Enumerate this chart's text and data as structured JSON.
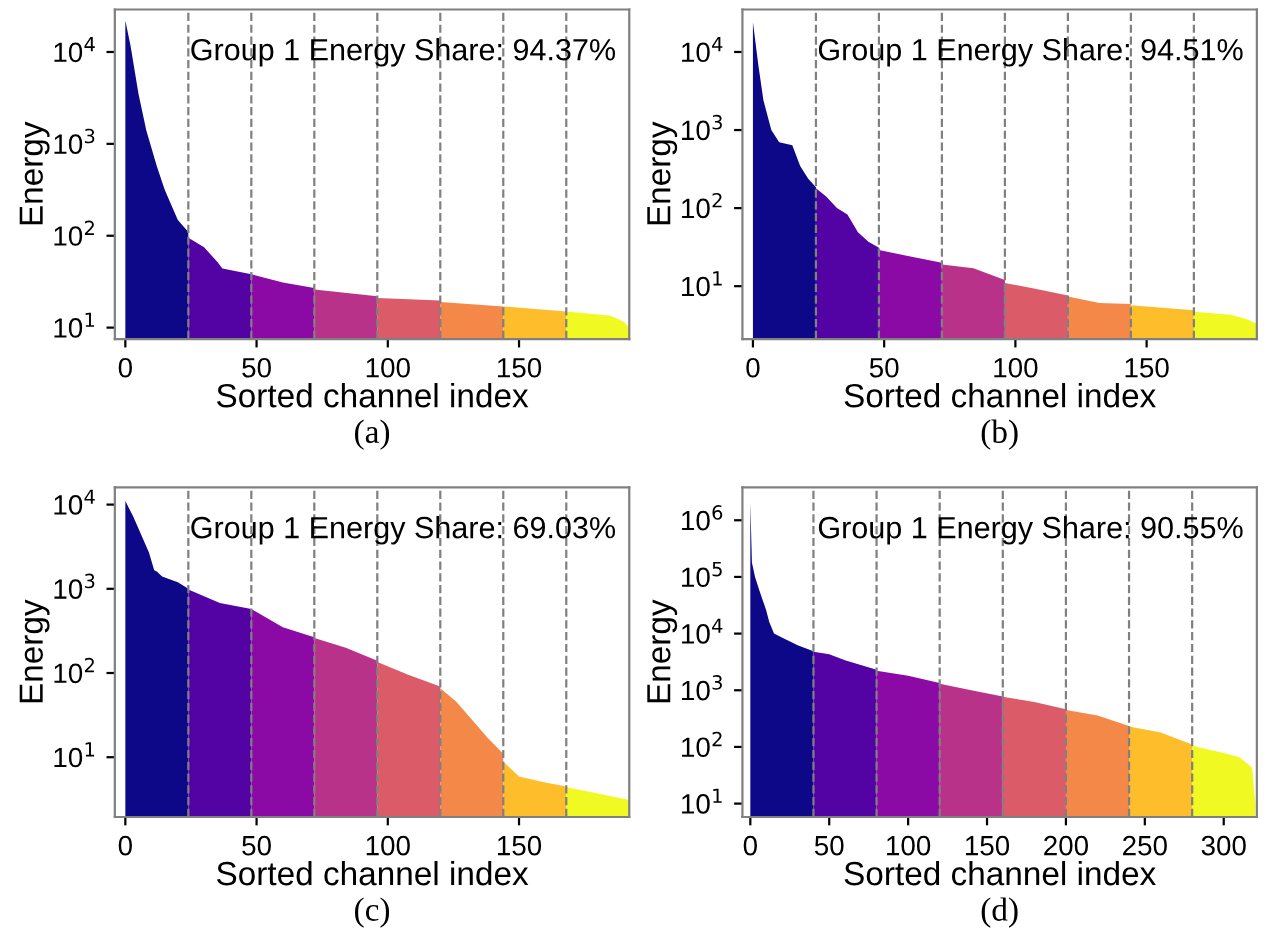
{
  "chart_data": [
    {
      "type": "area",
      "xlabel": "Sorted channel index",
      "ylabel": "Energy",
      "annotations": [
        "Group 1 Energy Share: 94.37%",
        "(a)"
      ],
      "log": "y",
      "xlim": [
        -4,
        192
      ],
      "ylim": [
        7.5,
        29000
      ],
      "xticks": [
        0,
        50,
        100,
        150
      ],
      "yticks": [
        {
          "value": 10,
          "label": "10$^{1}$"
        },
        {
          "value": 100,
          "label": "10$^{2}$"
        },
        {
          "value": 1000,
          "label": "10$^{3}$"
        },
        {
          "value": 10000,
          "label": "10$^{4}$"
        }
      ],
      "grid": false,
      "legend": false,
      "ref_lines": [
        {
          "axis": "x",
          "value": 24,
          "color": "#808080",
          "line_style": "dashed"
        },
        {
          "axis": "x",
          "value": 48,
          "color": "#808080",
          "line_style": "dashed"
        },
        {
          "axis": "x",
          "value": 72,
          "color": "#808080",
          "line_style": "dashed"
        },
        {
          "axis": "x",
          "value": 96,
          "color": "#808080",
          "line_style": "dashed"
        },
        {
          "axis": "x",
          "value": 120,
          "color": "#808080",
          "line_style": "dashed"
        },
        {
          "axis": "x",
          "value": 144,
          "color": "#808080",
          "line_style": "dashed"
        },
        {
          "axis": "x",
          "value": 168,
          "color": "#808080",
          "line_style": "dashed"
        }
      ],
      "series": [
        {
          "color": "#0d0887",
          "x": [
            0,
            2,
            5,
            8,
            12,
            15,
            20,
            24
          ],
          "values": [
            22000,
            11600,
            3500,
            1400,
            570,
            316,
            148,
            110
          ]
        },
        {
          "color": "#5302a3",
          "x": [
            24,
            30,
            35,
            37,
            48
          ],
          "values": [
            95,
            75,
            52,
            44,
            38
          ]
        },
        {
          "color": "#8b0aa5",
          "x": [
            48,
            60,
            72
          ],
          "values": [
            38,
            31,
            27
          ]
        },
        {
          "color": "#b83289",
          "x": [
            72,
            96
          ],
          "values": [
            26,
            22
          ]
        },
        {
          "color": "#db5c68",
          "x": [
            96,
            120
          ],
          "values": [
            21,
            19.7
          ]
        },
        {
          "color": "#f48849",
          "x": [
            120,
            144
          ],
          "values": [
            19,
            17
          ]
        },
        {
          "color": "#febd2a",
          "x": [
            144,
            168
          ],
          "values": [
            17,
            15
          ]
        },
        {
          "color": "#f0f921",
          "x": [
            168,
            185,
            190,
            192
          ],
          "values": [
            15,
            13.5,
            11.5,
            10
          ]
        }
      ]
    },
    {
      "type": "area",
      "xlabel": "Sorted channel index",
      "ylabel": "Energy",
      "annotations": [
        "Group 1 Energy Share: 94.51%",
        "(b)"
      ],
      "log": "y",
      "xlim": [
        -4,
        192
      ],
      "ylim": [
        2.1,
        35000
      ],
      "xticks": [
        0,
        50,
        100,
        150
      ],
      "yticks": [
        {
          "value": 10,
          "label": "10$^{1}$"
        },
        {
          "value": 100,
          "label": "10$^{2}$"
        },
        {
          "value": 1000,
          "label": "10$^{3}$"
        },
        {
          "value": 10000,
          "label": "10$^{4}$"
        }
      ],
      "grid": false,
      "legend": false,
      "ref_lines": [
        {
          "axis": "x",
          "value": 24,
          "color": "#808080",
          "line_style": "dashed"
        },
        {
          "axis": "x",
          "value": 48,
          "color": "#808080",
          "line_style": "dashed"
        },
        {
          "axis": "x",
          "value": 72,
          "color": "#808080",
          "line_style": "dashed"
        },
        {
          "axis": "x",
          "value": 96,
          "color": "#808080",
          "line_style": "dashed"
        },
        {
          "axis": "x",
          "value": 120,
          "color": "#808080",
          "line_style": "dashed"
        },
        {
          "axis": "x",
          "value": 144,
          "color": "#808080",
          "line_style": "dashed"
        },
        {
          "axis": "x",
          "value": 168,
          "color": "#808080",
          "line_style": "dashed"
        }
      ],
      "series": [
        {
          "color": "#0d0887",
          "x": [
            0,
            2,
            4,
            7,
            10,
            15,
            18,
            21,
            24
          ],
          "values": [
            24000,
            7000,
            2400,
            1000,
            700,
            640,
            345,
            240,
            185
          ]
        },
        {
          "color": "#5302a3",
          "x": [
            24,
            28,
            32,
            36,
            40,
            44,
            48
          ],
          "values": [
            180,
            140,
            100,
            83,
            49,
            37,
            31
          ]
        },
        {
          "color": "#8b0aa5",
          "x": [
            48,
            60,
            72
          ],
          "values": [
            29,
            24,
            20
          ]
        },
        {
          "color": "#b83289",
          "x": [
            72,
            84,
            96
          ],
          "values": [
            19,
            17,
            12
          ]
        },
        {
          "color": "#db5c68",
          "x": [
            96,
            108,
            120
          ],
          "values": [
            11,
            9.2,
            7.6
          ]
        },
        {
          "color": "#f48849",
          "x": [
            120,
            132,
            144
          ],
          "values": [
            7.4,
            6.1,
            5.9
          ]
        },
        {
          "color": "#febd2a",
          "x": [
            144,
            168
          ],
          "values": [
            5.7,
            4.9
          ]
        },
        {
          "color": "#f0f921",
          "x": [
            168,
            182,
            188,
            192
          ],
          "values": [
            4.7,
            4.3,
            3.8,
            3.3
          ]
        }
      ]
    },
    {
      "type": "area",
      "xlabel": "Sorted channel index",
      "ylabel": "Energy",
      "annotations": [
        "Group 1 Energy Share: 69.03%",
        "(c)"
      ],
      "log": "y",
      "xlim": [
        -4,
        192
      ],
      "ylim": [
        1.95,
        16000
      ],
      "xticks": [
        0,
        50,
        100,
        150
      ],
      "yticks": [
        {
          "value": 10,
          "label": "10$^{1}$"
        },
        {
          "value": 100,
          "label": "10$^{2}$"
        },
        {
          "value": 1000,
          "label": "10$^{3}$"
        },
        {
          "value": 10000,
          "label": "10$^{4}$"
        }
      ],
      "grid": false,
      "legend": false,
      "ref_lines": [
        {
          "axis": "x",
          "value": 24,
          "color": "#808080",
          "line_style": "dashed"
        },
        {
          "axis": "x",
          "value": 48,
          "color": "#808080",
          "line_style": "dashed"
        },
        {
          "axis": "x",
          "value": 72,
          "color": "#808080",
          "line_style": "dashed"
        },
        {
          "axis": "x",
          "value": 96,
          "color": "#808080",
          "line_style": "dashed"
        },
        {
          "axis": "x",
          "value": 120,
          "color": "#808080",
          "line_style": "dashed"
        },
        {
          "axis": "x",
          "value": 144,
          "color": "#808080",
          "line_style": "dashed"
        },
        {
          "axis": "x",
          "value": 168,
          "color": "#808080",
          "line_style": "dashed"
        }
      ],
      "series": [
        {
          "color": "#0d0887",
          "x": [
            0,
            3,
            6,
            9,
            11,
            12,
            14,
            20,
            24
          ],
          "values": [
            11000,
            7200,
            4400,
            2700,
            1660,
            1600,
            1400,
            1200,
            1000
          ]
        },
        {
          "color": "#5302a3",
          "x": [
            24,
            36,
            48
          ],
          "values": [
            980,
            680,
            575
          ]
        },
        {
          "color": "#8b0aa5",
          "x": [
            48,
            60,
            72
          ],
          "values": [
            575,
            350,
            265
          ]
        },
        {
          "color": "#b83289",
          "x": [
            72,
            84,
            96
          ],
          "values": [
            260,
            200,
            140
          ]
        },
        {
          "color": "#db5c68",
          "x": [
            96,
            108,
            120
          ],
          "values": [
            135,
            95,
            69
          ]
        },
        {
          "color": "#f48849",
          "x": [
            120,
            126,
            132,
            138,
            144
          ],
          "values": [
            66,
            46,
            28,
            17,
            11
          ]
        },
        {
          "color": "#febd2a",
          "x": [
            144,
            150,
            160,
            168
          ],
          "values": [
            8.9,
            5.9,
            5,
            4.5
          ]
        },
        {
          "color": "#f0f921",
          "x": [
            168,
            180,
            192
          ],
          "values": [
            4.4,
            3.7,
            3.1
          ]
        }
      ]
    },
    {
      "type": "area",
      "xlabel": "Sorted channel index",
      "ylabel": "Energy",
      "annotations": [
        "Group 1 Energy Share: 90.55%",
        "(d)"
      ],
      "log": "y",
      "xlim": [
        -5,
        321
      ],
      "ylim": [
        5.8,
        3800000
      ],
      "xticks": [
        0,
        50,
        100,
        150,
        200,
        250,
        300
      ],
      "yticks": [
        {
          "value": 10,
          "label": "10$^{1}$"
        },
        {
          "value": 100,
          "label": "10$^{2}$"
        },
        {
          "value": 1000,
          "label": "10$^{3}$"
        },
        {
          "value": 10000,
          "label": "10$^{4}$"
        },
        {
          "value": 100000,
          "label": "10$^{5}$"
        },
        {
          "value": 1000000,
          "label": "10$^{6}$"
        }
      ],
      "grid": false,
      "legend": false,
      "ref_lines": [
        {
          "axis": "x",
          "value": 40,
          "color": "#808080",
          "line_style": "dashed"
        },
        {
          "axis": "x",
          "value": 80,
          "color": "#808080",
          "line_style": "dashed"
        },
        {
          "axis": "x",
          "value": 120,
          "color": "#808080",
          "line_style": "dashed"
        },
        {
          "axis": "x",
          "value": 160,
          "color": "#808080",
          "line_style": "dashed"
        },
        {
          "axis": "x",
          "value": 200,
          "color": "#808080",
          "line_style": "dashed"
        },
        {
          "axis": "x",
          "value": 240,
          "color": "#808080",
          "line_style": "dashed"
        },
        {
          "axis": "x",
          "value": 280,
          "color": "#808080",
          "line_style": "dashed"
        }
      ],
      "series": [
        {
          "color": "#0d0887",
          "x": [
            0,
            1,
            3,
            6,
            10,
            12,
            15,
            20,
            30,
            40
          ],
          "values": [
            2100000,
            180000,
            100000,
            55000,
            26000,
            16000,
            10000,
            8500,
            6200,
            4900
          ]
        },
        {
          "color": "#5302a3",
          "x": [
            40,
            50,
            60,
            80
          ],
          "values": [
            4800,
            4300,
            3400,
            2300
          ]
        },
        {
          "color": "#8b0aa5",
          "x": [
            80,
            100,
            120
          ],
          "values": [
            2200,
            1800,
            1350
          ]
        },
        {
          "color": "#b83289",
          "x": [
            120,
            140,
            160
          ],
          "values": [
            1300,
            1000,
            780
          ]
        },
        {
          "color": "#db5c68",
          "x": [
            160,
            180,
            200
          ],
          "values": [
            770,
            620,
            460
          ]
        },
        {
          "color": "#f48849",
          "x": [
            200,
            220,
            240
          ],
          "values": [
            450,
            360,
            235
          ]
        },
        {
          "color": "#febd2a",
          "x": [
            240,
            260,
            280
          ],
          "values": [
            230,
            180,
            110
          ]
        },
        {
          "color": "#f0f921",
          "x": [
            280,
            300,
            310,
            318,
            320
          ],
          "values": [
            105,
            78,
            66,
            43,
            10
          ]
        }
      ]
    }
  ]
}
